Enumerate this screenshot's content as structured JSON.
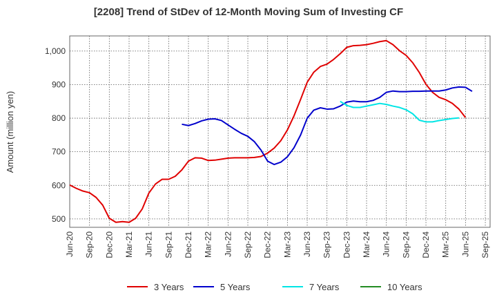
{
  "chart_data": {
    "type": "line",
    "title": "[2208]  Trend of StDev of 12-Month Moving Sum of Investing CF",
    "ylabel": "Amount (million yen)",
    "xlabel": "",
    "ylim": [
      475,
      1045
    ],
    "yticks": [
      500,
      600,
      700,
      800,
      900,
      1000
    ],
    "ytick_labels": [
      "500",
      "600",
      "700",
      "800",
      "900",
      "1,000"
    ],
    "xticks": [
      "Jun-20",
      "Sep-20",
      "Dec-20",
      "Mar-21",
      "Jun-21",
      "Sep-21",
      "Dec-21",
      "Mar-22",
      "Jun-22",
      "Sep-22",
      "Dec-22",
      "Mar-23",
      "Jun-23",
      "Sep-23",
      "Dec-23",
      "Mar-24",
      "Jun-24",
      "Sep-24",
      "Dec-24",
      "Mar-25",
      "Jun-25",
      "Sep-25"
    ],
    "x_month_offset_note": "",
    "grid": true,
    "legend_position": "bottom",
    "series": [
      {
        "name": "3 Years",
        "color": "#e00000",
        "start": "Jun-20",
        "values": [
          601,
          591,
          583,
          578,
          564,
          541,
          502,
          490,
          492,
          490,
          502,
          530,
          577,
          604,
          618,
          618,
          627,
          646,
          672,
          682,
          681,
          674,
          675,
          678,
          681,
          682,
          682,
          682,
          683,
          686,
          696,
          711,
          733,
          765,
          807,
          856,
          907,
          937,
          954,
          961,
          975,
          992,
          1011,
          1016,
          1017,
          1019,
          1023,
          1028,
          1031,
          1019,
          1001,
          987,
          965,
          936,
          901,
          877,
          862,
          855,
          844,
          827,
          802
        ]
      },
      {
        "name": "5 Years",
        "color": "#0000cc",
        "start": "Nov-21",
        "values": [
          782,
          778,
          784,
          792,
          797,
          798,
          793,
          780,
          767,
          755,
          746,
          730,
          705,
          672,
          662,
          669,
          685,
          712,
          750,
          800,
          824,
          831,
          827,
          828,
          836,
          848,
          851,
          849,
          849,
          853,
          862,
          877,
          881,
          879,
          879,
          880,
          880,
          881,
          881,
          881,
          884,
          890,
          893,
          892,
          880
        ]
      },
      {
        "name": "7 Years",
        "color": "#00e5e5",
        "start": "Nov-23",
        "values": [
          850,
          838,
          832,
          832,
          836,
          840,
          844,
          841,
          836,
          832,
          825,
          813,
          794,
          789,
          789,
          793,
          796,
          799,
          801
        ]
      },
      {
        "name": "10 Years",
        "color": "#228b22",
        "start": "Jun-25",
        "values": []
      }
    ]
  }
}
